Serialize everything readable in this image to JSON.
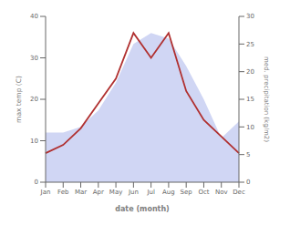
{
  "chart_data": {
    "type": "line",
    "categories": [
      "Jan",
      "Feb",
      "Mar",
      "Apr",
      "May",
      "Jun",
      "Jul",
      "Aug",
      "Sep",
      "Oct",
      "Nov",
      "Dec"
    ],
    "series": [
      {
        "type": "area",
        "color": "#c0c8f0",
        "axis": "y2",
        "values": [
          9,
          9,
          10,
          13,
          18,
          25,
          27,
          26,
          21,
          15,
          8,
          11
        ]
      },
      {
        "type": "line",
        "color": "#b03030",
        "values": [
          7,
          9,
          13,
          19,
          25,
          36,
          30,
          36,
          22,
          15,
          11,
          7
        ]
      }
    ],
    "xlabel": "date (month)",
    "ylabel": "max temp (C)",
    "y2label": "med. precipitation (kg/m2)",
    "ylim": [
      0,
      40
    ],
    "yticks": [
      0,
      10,
      20,
      30,
      40
    ],
    "y2lim": [
      0,
      30
    ],
    "y2ticks": [
      0,
      5,
      10,
      15,
      20,
      25,
      30
    ],
    "grid": false
  }
}
